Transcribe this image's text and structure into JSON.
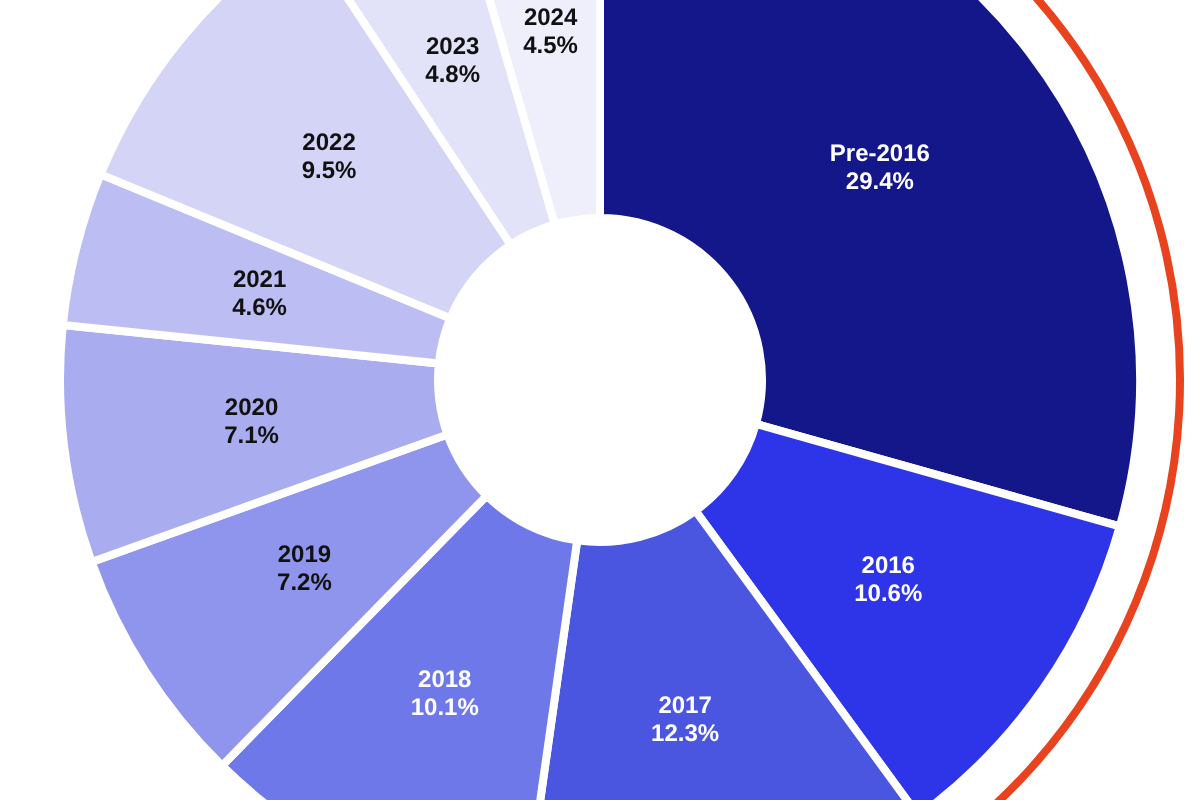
{
  "chart_data": {
    "type": "donut",
    "categories": [
      "Pre-2016",
      "2016",
      "2017",
      "2018",
      "2019",
      "2020",
      "2021",
      "2022",
      "2023",
      "2024"
    ],
    "values": [
      29.4,
      10.6,
      12.3,
      10.1,
      7.2,
      7.1,
      4.6,
      9.5,
      4.8,
      4.5
    ],
    "value_labels": [
      "29.4%",
      "10.6%",
      "12.3%",
      "10.1%",
      "7.2%",
      "7.1%",
      "4.6%",
      "9.5%",
      "4.8%",
      "4.5%"
    ],
    "colors": [
      "#14178a",
      "#2e35e8",
      "#4a55e0",
      "#6f78e8",
      "#8f95ec",
      "#a9acef",
      "#bcbef3",
      "#d3d4f6",
      "#e2e3f8",
      "#efeffb"
    ],
    "legend": false
  }
}
